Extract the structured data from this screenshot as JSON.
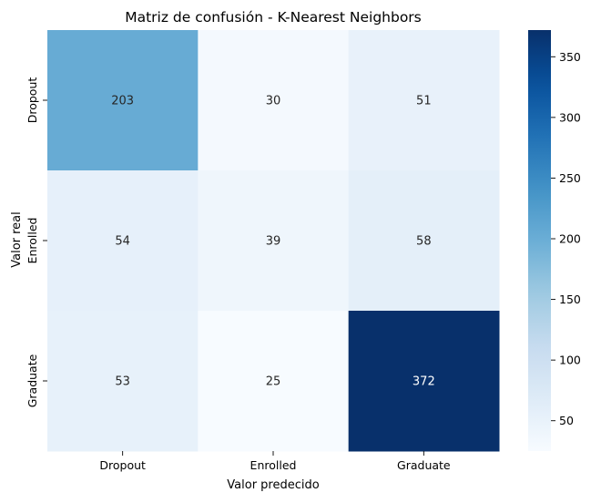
{
  "chart_data": {
    "type": "heatmap",
    "title": "Matriz de confusión - K-Nearest Neighbors",
    "xlabel": "Valor predecido",
    "ylabel": "Valor real",
    "x_categories": [
      "Dropout",
      "Enrolled",
      "Graduate"
    ],
    "y_categories": [
      "Dropout",
      "Enrolled",
      "Graduate"
    ],
    "values": [
      [
        203,
        30,
        51
      ],
      [
        54,
        39,
        58
      ],
      [
        53,
        25,
        372
      ]
    ],
    "colormap": "Blues",
    "color_range": [
      25,
      372
    ],
    "colorbar_ticks": [
      50,
      100,
      150,
      200,
      250,
      300,
      350
    ],
    "annotation_dark_color": "#262626",
    "annotation_light_color": "#ffffff"
  }
}
